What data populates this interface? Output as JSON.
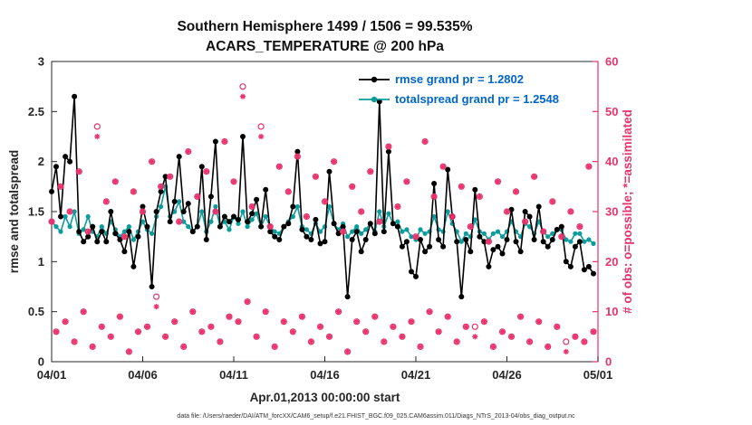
{
  "title": {
    "line1": "Southern Hemisphere 1499 / 1506 = 99.535%",
    "line2": "ACARS_TEMPERATURE @ 200 hPa"
  },
  "axes": {
    "ylabel_left": "rmse and totalspread",
    "ylabel_right": "# of obs: o=possible; *=assimilated",
    "xlabel": "Apr.01,2013 00:00:00 start",
    "yticks_left": [
      0,
      0.5,
      1,
      1.5,
      2,
      2.5,
      3
    ],
    "yticks_right": [
      0,
      10,
      20,
      30,
      40,
      50,
      60
    ],
    "xticks": {
      "days": [
        0,
        5,
        10,
        15,
        20,
        25,
        30
      ],
      "labels": [
        "04/01",
        "04/06",
        "04/11",
        "04/16",
        "04/21",
        "04/26",
        "05/01"
      ]
    }
  },
  "legend": [
    {
      "label": "rmse grand pr = 1.2802",
      "series": "rmse"
    },
    {
      "label": "totalspread grand pr = 1.2548",
      "series": "totalspread"
    }
  ],
  "caption": "data file: /Users/raeder/DAI/ATM_forcXX/CAM6_setup/f.e21.FHIST_BGC.f09_025.CAM6assim.011/Diags_NTrS_2013-04/obs_diag_output.nc",
  "colors": {
    "rmse": "#000000",
    "totalspread": "#0d9c9c",
    "obs": "#e8336c",
    "legend_text": "#0066cc",
    "axis": "#262626"
  },
  "chart_data": {
    "type": "line",
    "title": "Southern Hemisphere 1499 / 1506 = 99.535% — ACARS_TEMPERATURE @ 200 hPa",
    "xlabel": "Apr.01,2013 00:00:00 start",
    "ylabel_left": "rmse and totalspread",
    "ylabel_right": "# of obs: o=possible; *=assimilated",
    "ylim_left": [
      0,
      3
    ],
    "ylim_right": [
      0,
      60
    ],
    "xlim_days": [
      0,
      30
    ],
    "x": {
      "start_day": 0,
      "step_days": 0.25,
      "n": 120
    },
    "stats": {
      "possible_total": 1506,
      "assimilated_total": 1499,
      "pct_assimilated": 99.535,
      "rmse_grand_prior": 1.2802,
      "totalspread_grand_prior": 1.2548
    },
    "series": [
      {
        "name": "rmse",
        "axis": "left",
        "style": "line+dot",
        "color": "#000000",
        "values": [
          1.7,
          1.95,
          1.45,
          2.05,
          2.0,
          2.65,
          1.3,
          1.2,
          1.25,
          1.35,
          1.2,
          1.3,
          1.2,
          1.5,
          1.28,
          1.22,
          1.1,
          1.3,
          0.95,
          1.25,
          1.55,
          1.35,
          0.75,
          1.5,
          1.7,
          1.85,
          1.4,
          1.6,
          2.05,
          1.5,
          1.58,
          1.3,
          1.35,
          1.95,
          1.22,
          1.65,
          2.2,
          1.35,
          1.45,
          1.4,
          1.45,
          1.42,
          2.25,
          1.4,
          1.48,
          1.62,
          1.35,
          1.72,
          1.3,
          1.25,
          1.22,
          1.35,
          1.38,
          1.55,
          2.1,
          1.32,
          1.25,
          1.22,
          1.42,
          1.18,
          1.2,
          1.9,
          1.38,
          1.28,
          1.35,
          0.65,
          1.22,
          1.3,
          1.1,
          1.22,
          1.38,
          1.28,
          2.6,
          1.3,
          2.1,
          1.38,
          1.35,
          1.15,
          1.2,
          0.9,
          0.85,
          1.22,
          1.1,
          1.15,
          1.78,
          1.22,
          1.15,
          1.92,
          1.45,
          1.2,
          0.65,
          1.22,
          1.1,
          1.72,
          1.25,
          1.2,
          0.95,
          1.12,
          1.15,
          1.08,
          1.22,
          1.52,
          1.2,
          1.1,
          1.5,
          1.45,
          1.22,
          1.55,
          1.2,
          1.15,
          1.22,
          1.32,
          1.35,
          1.0,
          0.95,
          1.15,
          1.2,
          0.92,
          0.95,
          0.88
        ]
      },
      {
        "name": "totalspread",
        "axis": "left",
        "style": "line+dot",
        "color": "#0d9c9c",
        "values": [
          1.4,
          1.35,
          1.3,
          1.45,
          1.35,
          1.5,
          1.28,
          1.32,
          1.45,
          1.3,
          1.25,
          1.35,
          1.28,
          1.4,
          1.32,
          1.25,
          1.3,
          1.35,
          1.22,
          1.3,
          1.4,
          1.32,
          1.28,
          1.45,
          1.55,
          1.75,
          1.45,
          1.5,
          1.6,
          1.4,
          1.35,
          1.3,
          1.35,
          1.5,
          1.3,
          1.4,
          1.55,
          1.35,
          1.4,
          1.32,
          1.45,
          1.38,
          1.5,
          1.35,
          1.42,
          1.48,
          1.35,
          1.45,
          1.35,
          1.3,
          1.28,
          1.35,
          1.4,
          1.45,
          1.55,
          1.35,
          1.32,
          1.28,
          1.38,
          1.3,
          1.35,
          1.55,
          1.38,
          1.32,
          1.38,
          1.25,
          1.3,
          1.35,
          1.28,
          1.32,
          1.38,
          1.3,
          1.5,
          1.35,
          1.48,
          1.38,
          1.4,
          1.3,
          1.32,
          1.25,
          1.22,
          1.32,
          1.28,
          1.3,
          1.45,
          1.32,
          1.3,
          1.5,
          1.38,
          1.3,
          1.2,
          1.28,
          1.25,
          1.42,
          1.3,
          1.28,
          1.22,
          1.28,
          1.3,
          1.25,
          1.3,
          1.4,
          1.3,
          1.25,
          1.38,
          1.35,
          1.28,
          1.4,
          1.3,
          1.25,
          1.28,
          1.32,
          1.32,
          1.22,
          1.2,
          1.28,
          1.28,
          1.2,
          1.22,
          1.18
        ]
      },
      {
        "name": "obs_possible",
        "axis": "right",
        "style": "circle",
        "color": "#e8336c",
        "values": [
          28,
          6,
          35,
          8,
          30,
          4,
          38,
          10,
          26,
          3,
          47,
          7,
          32,
          5,
          36,
          9,
          25,
          2,
          34,
          6,
          30,
          7,
          40,
          13,
          35,
          5,
          37,
          8,
          28,
          3,
          42,
          10,
          33,
          6,
          38,
          7,
          30,
          4,
          44,
          9,
          36,
          8,
          55,
          12,
          31,
          5,
          47,
          10,
          27,
          3,
          39,
          8,
          34,
          6,
          41,
          9,
          29,
          4,
          37,
          7,
          32,
          5,
          40,
          10,
          26,
          2,
          35,
          8,
          30,
          6,
          38,
          9,
          28,
          4,
          43,
          7,
          31,
          5,
          36,
          8,
          25,
          3,
          44,
          10,
          33,
          6,
          39,
          9,
          29,
          4,
          35,
          7,
          27,
          7,
          33,
          8,
          24,
          3,
          36,
          6,
          30,
          5,
          34,
          9,
          28,
          4,
          37,
          8,
          26,
          3,
          32,
          7,
          25,
          4,
          30,
          5,
          27,
          4,
          39,
          6
        ]
      },
      {
        "name": "obs_assimilated",
        "axis": "right",
        "style": "asterisk",
        "color": "#e8336c",
        "values": [
          28,
          6,
          35,
          8,
          30,
          4,
          38,
          10,
          26,
          3,
          45,
          7,
          32,
          5,
          36,
          9,
          25,
          2,
          34,
          6,
          30,
          7,
          40,
          11,
          35,
          5,
          37,
          8,
          28,
          3,
          42,
          10,
          33,
          6,
          38,
          7,
          30,
          4,
          44,
          9,
          36,
          8,
          53,
          12,
          31,
          5,
          45,
          10,
          27,
          3,
          39,
          8,
          34,
          6,
          41,
          9,
          29,
          4,
          37,
          7,
          32,
          5,
          40,
          10,
          26,
          2,
          35,
          8,
          30,
          6,
          38,
          9,
          28,
          4,
          43,
          7,
          31,
          5,
          36,
          8,
          25,
          3,
          44,
          10,
          33,
          6,
          39,
          9,
          29,
          4,
          35,
          7,
          27,
          5,
          33,
          8,
          24,
          3,
          36,
          6,
          30,
          5,
          34,
          9,
          28,
          4,
          37,
          8,
          26,
          3,
          32,
          7,
          25,
          2,
          30,
          5,
          27,
          4,
          39,
          6
        ]
      }
    ],
    "legend_position": "top-center-inside",
    "grid": false
  }
}
